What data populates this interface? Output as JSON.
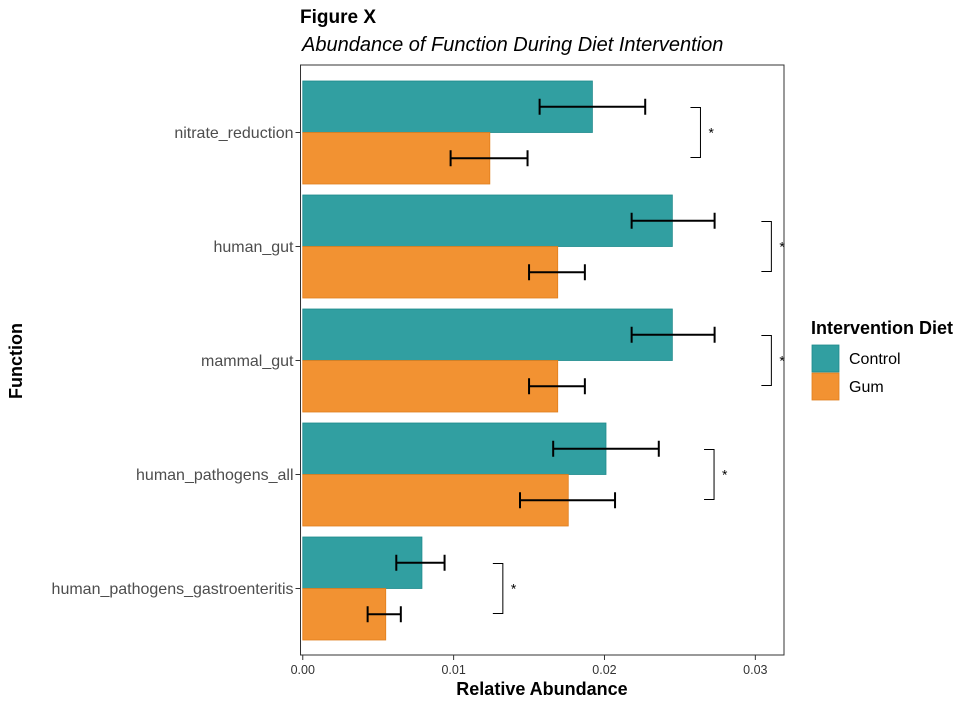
{
  "chart_data": {
    "type": "bar",
    "orientation": "horizontal",
    "title": "Figure X",
    "subtitle": "Abundance of Function During Diet Intervention",
    "xlabel": "Relative Abundance",
    "ylabel": "Function",
    "xlim": [
      -0.00015,
      0.0319
    ],
    "xticks": [
      0.0,
      0.01,
      0.02,
      0.03
    ],
    "xtick_labels": [
      "0.00",
      "0.01",
      "0.02",
      "0.03"
    ],
    "categories": [
      "nitrate_reduction",
      "human_gut",
      "mammal_gut",
      "human_pathogens_all",
      "human_pathogens_gastroenteritis"
    ],
    "series": [
      {
        "name": "Control",
        "color": "#319fa1",
        "values": [
          0.0192,
          0.0245,
          0.0245,
          0.0201,
          0.0079
        ],
        "error_low": [
          0.0157,
          0.0218,
          0.0218,
          0.0166,
          0.0062
        ],
        "error_high": [
          0.0227,
          0.0273,
          0.0273,
          0.0236,
          0.0094
        ]
      },
      {
        "name": "Gum",
        "color": "#f29232",
        "values": [
          0.0124,
          0.0169,
          0.0169,
          0.0176,
          0.0055
        ],
        "error_low": [
          0.0098,
          0.015,
          0.015,
          0.0144,
          0.0043
        ],
        "error_high": [
          0.0149,
          0.0187,
          0.0187,
          0.0207,
          0.0065
        ]
      }
    ],
    "significance": [
      "*",
      "*",
      "*",
      "*",
      "*"
    ],
    "significance_bracket_x": [
      0.0257,
      0.0304,
      0.0304,
      0.0266,
      0.0126
    ],
    "legend": {
      "title": "Intervention Diet",
      "entries": [
        "Control",
        "Gum"
      ],
      "position": "right"
    },
    "grid": false
  }
}
